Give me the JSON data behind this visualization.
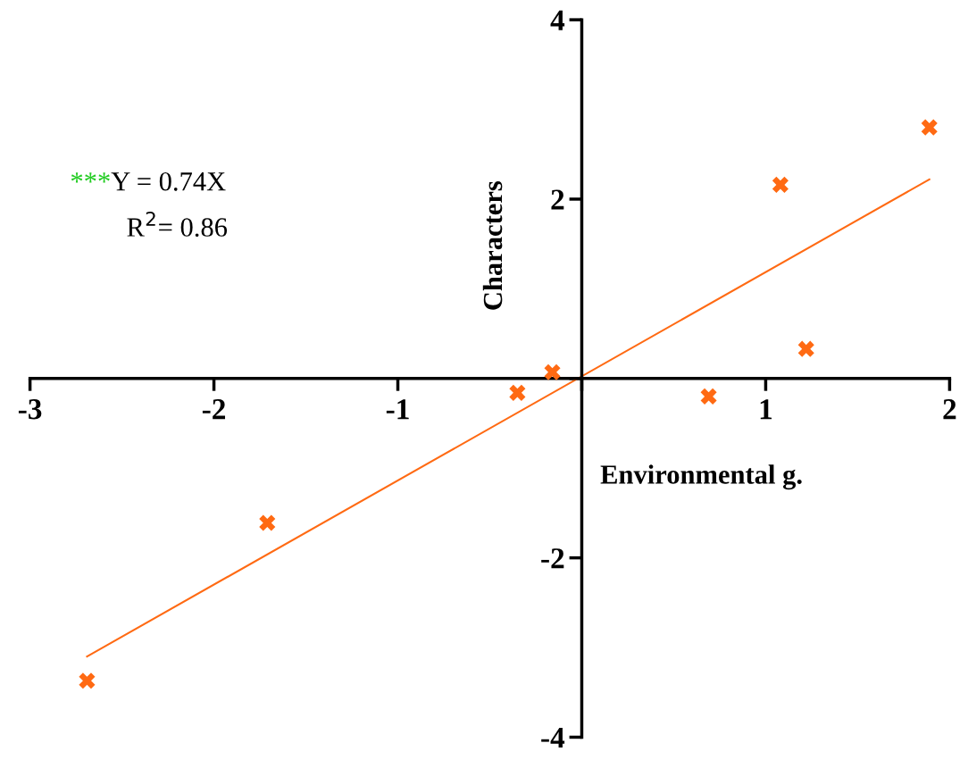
{
  "chart_data": {
    "type": "scatter",
    "xlabel": "Environmental g.",
    "ylabel": "Characters",
    "xlim": [
      -3,
      2
    ],
    "ylim": [
      -4,
      4
    ],
    "xticks": [
      -3,
      -2,
      -1,
      {
        "value": 0,
        "label": null
      },
      1,
      2
    ],
    "yticks": [
      -4,
      -2,
      {
        "value": 0,
        "label": null
      },
      2,
      4
    ],
    "grid": false,
    "legend": false,
    "annotations": [
      "***",
      "Y = 0.74X",
      "R$^{2}$= 0.86"
    ],
    "series": [
      {
        "marker": "cross",
        "color": "#ff6a13",
        "x": [
          -2.69,
          -1.71,
          -0.35,
          -0.16,
          0.69,
          1.08,
          1.22,
          1.89
        ],
        "values": [
          -3.37,
          -1.61,
          -0.16,
          0.07,
          -0.2,
          2.16,
          0.33,
          2.8
        ]
      },
      {
        "type": "line",
        "marker": "none",
        "color": "#ff6a13",
        "x": [
          -2.69,
          1.89
        ],
        "values": [
          -3.1,
          2.22
        ]
      }
    ]
  }
}
